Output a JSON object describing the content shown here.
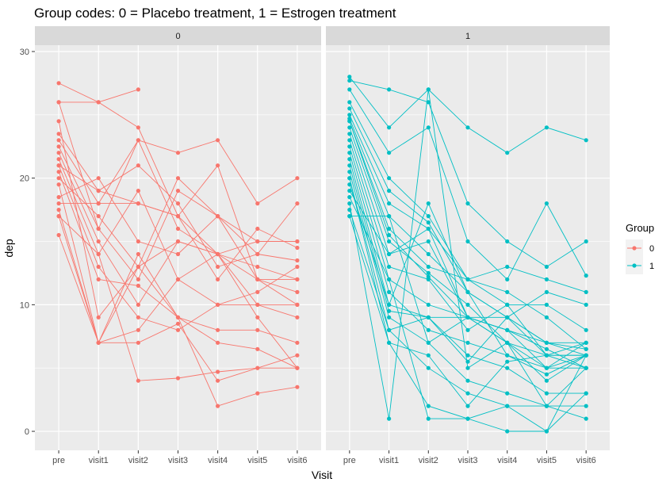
{
  "chart_data": {
    "type": "line",
    "title": "Group codes: 0 = Placebo treatment, 1 = Estrogen treatment",
    "xlabel": "Visit",
    "ylabel": "dep",
    "categories": [
      "pre",
      "visit1",
      "visit2",
      "visit3",
      "visit4",
      "visit5",
      "visit6"
    ],
    "y_ticks": [
      0,
      10,
      20,
      30
    ],
    "ylim": [
      -1.5,
      30.5
    ],
    "grid": true,
    "facet_by": "Group",
    "legend": {
      "title": "Group",
      "placement": "right",
      "entries": [
        {
          "label": "0",
          "color": "#F8766D"
        },
        {
          "label": "1",
          "color": "#00BFC4"
        }
      ]
    },
    "panels": [
      {
        "strip": "0",
        "color": "#F8766D",
        "series": [
          {
            "values": [
              27.5,
              26,
              27
            ]
          },
          {
            "values": [
              26,
              26,
              24,
              17,
              14,
              15,
              15
            ]
          },
          {
            "values": [
              26,
              16,
              23,
              22,
              23,
              18,
              20
            ]
          },
          {
            "values": [
              24.5,
              9,
              13,
              20,
              17,
              14,
              18
            ]
          },
          {
            "values": [
              23.5,
              19,
              21,
              18,
              13,
              14,
              13.5
            ]
          },
          {
            "values": [
              23,
              18,
              18,
              17,
              21,
              12,
              12
            ]
          },
          {
            "values": [
              22.5,
              16,
              12,
              19,
              17,
              15,
              15
            ]
          },
          {
            "values": [
              22,
              15,
              10,
              15,
              14,
              13,
              12
            ]
          },
          {
            "values": [
              21.5,
              14,
              19,
              12,
              14,
              10,
              10
            ]
          },
          {
            "values": [
              21,
              13,
              9,
              8,
              10,
              11,
              13
            ]
          },
          {
            "values": [
              20.5,
              12,
              11.5,
              9,
              8,
              8,
              7
            ]
          },
          {
            "values": [
              21,
              19,
              18,
              17,
              12,
              16,
              14.5
            ]
          },
          {
            "values": [
              20,
              17,
              13,
              15,
              14,
              12,
              11
            ]
          },
          {
            "values": [
              19.5,
              7,
              8,
              12,
              10,
              10,
              9
            ]
          },
          {
            "values": [
              18.5,
              20,
              15,
              14,
              17,
              12,
              10
            ]
          },
          {
            "values": [
              18,
              18,
              23,
              16,
              14,
              9,
              5
            ]
          },
          {
            "values": [
              17.5,
              7,
              7,
              8.5,
              4,
              5,
              5
            ]
          },
          {
            "values": [
              17,
              7,
              14,
              9,
              7,
              6.5,
              5
            ]
          },
          {
            "values": [
              17,
              14,
              4,
              4.2,
              4.7,
              5,
              6
            ]
          },
          {
            "values": [
              15.5,
              7,
              13,
              9,
              2,
              3,
              3.5
            ]
          }
        ]
      },
      {
        "strip": "1",
        "color": "#00BFC4",
        "series": [
          {
            "values": [
              28,
              24,
              27,
              24,
              22,
              24,
              23
            ]
          },
          {
            "values": [
              27.7,
              27,
              26,
              18,
              15,
              13,
              15
            ]
          },
          {
            "values": [
              27,
              22,
              24,
              15,
              12,
              18,
              12.3
            ]
          },
          {
            "values": [
              26,
              20,
              17,
              12,
              13,
              12,
              11
            ]
          },
          {
            "values": [
              25.5,
              19,
              16.5,
              11,
              9,
              11,
              10
            ]
          },
          {
            "values": [
              25,
              18,
              16,
              12,
              10,
              10,
              8
            ]
          },
          {
            "values": [
              24.7,
              17,
              14,
              11,
              9,
              7,
              7
            ]
          },
          {
            "values": [
              24.5,
              16,
              13,
              12,
              11,
              9,
              6.5
            ]
          },
          {
            "values": [
              24.5,
              15.5,
              12.2,
              9,
              8,
              7,
              6.5
            ]
          },
          {
            "values": [
              24,
              15,
              12.5,
              10,
              7,
              5,
              7
            ]
          },
          {
            "values": [
              23.5,
              14,
              15,
              9,
              9,
              6,
              5
            ]
          },
          {
            "values": [
              23,
              13,
              12,
              8,
              10,
              6,
              6
            ]
          },
          {
            "values": [
              22.5,
              12,
              10,
              9,
              8,
              5,
              5
            ]
          },
          {
            "values": [
              22,
              11,
              8,
              7,
              6,
              4.5,
              6
            ]
          },
          {
            "values": [
              21.5,
              10,
              9,
              9,
              7,
              4,
              6
            ]
          },
          {
            "values": [
              21,
              9.5,
              9,
              6,
              5,
              3,
              3
            ]
          },
          {
            "values": [
              20.5,
              9,
              7,
              4,
              3,
              2,
              2
            ]
          },
          {
            "values": [
              20,
              8,
              5,
              3,
              2,
              2,
              1
            ]
          },
          {
            "values": [
              20,
              7,
              2,
              1,
              2,
              0,
              3
            ]
          },
          {
            "values": [
              19.5,
              10,
              18,
              11,
              6,
              5,
              6
            ]
          },
          {
            "values": [
              19,
              14,
              16,
              9,
              7,
              6,
              6
            ]
          },
          {
            "values": [
              18.5,
              12,
              1,
              1,
              0,
              0,
              6
            ]
          },
          {
            "values": [
              18,
              1,
              27,
              5,
              7,
              2,
              5
            ]
          },
          {
            "values": [
              17.5,
              8,
              9,
              5.5,
              9,
              7,
              6
            ]
          },
          {
            "values": [
              17,
              17,
              7,
              9,
              8,
              6.5,
              5
            ]
          },
          {
            "values": [
              17,
              7,
              6,
              2,
              5.5,
              6,
              7
            ]
          }
        ]
      }
    ]
  }
}
